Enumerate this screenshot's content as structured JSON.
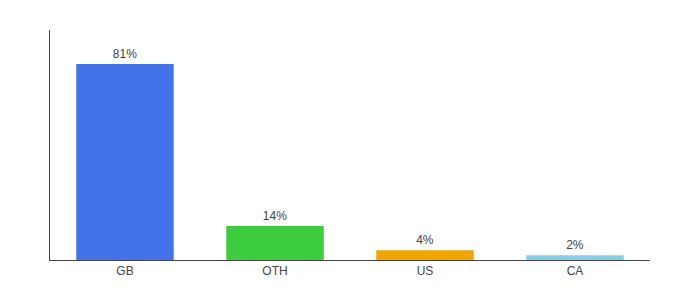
{
  "chart_data": {
    "type": "bar",
    "categories": [
      "GB",
      "OTH",
      "US",
      "CA"
    ],
    "values": [
      81,
      14,
      4,
      2
    ],
    "value_labels": [
      "81%",
      "14%",
      "4%",
      "2%"
    ],
    "data_labels": true,
    "colors": [
      "#4472e8",
      "#3dcc3d",
      "#f0a500",
      "#87ceeb"
    ],
    "ylim": [
      0,
      95
    ],
    "tick_labels": "x",
    "grid": false
  }
}
